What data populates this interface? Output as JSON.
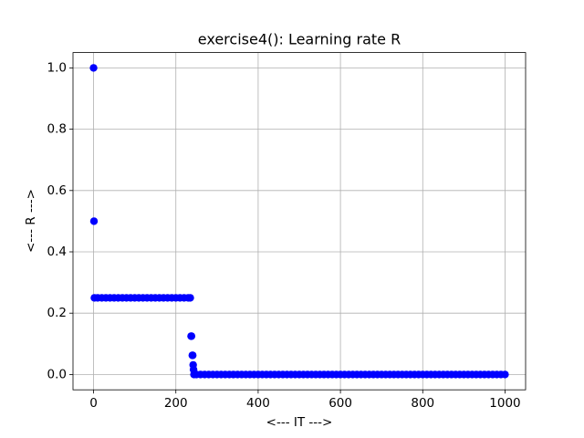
{
  "chart_data": {
    "type": "scatter",
    "title": "exercise4(): Learning rate R",
    "x_label": "<--- IT --->",
    "y_label": "<--- R --->",
    "color": "#0000ff",
    "grid": true,
    "xlim": [
      -50,
      1050
    ],
    "xticks": [
      0,
      200,
      400,
      600,
      800,
      1000
    ],
    "ylim": [
      -0.05,
      1.05
    ],
    "yticks": [
      {
        "value": 0,
        "label": "0.0"
      },
      0.2,
      0.4,
      0.6,
      0.8,
      {
        "value": 1,
        "label": "1.0"
      }
    ],
    "x": [
      0,
      1,
      2,
      10,
      20,
      30,
      40,
      50,
      60,
      70,
      80,
      90,
      100,
      110,
      120,
      130,
      140,
      150,
      160,
      170,
      180,
      190,
      200,
      210,
      220,
      230,
      235,
      237,
      238,
      240,
      241,
      242,
      243,
      244,
      250,
      260,
      270,
      280,
      290,
      300,
      310,
      320,
      330,
      340,
      350,
      360,
      370,
      380,
      390,
      400,
      410,
      420,
      430,
      440,
      450,
      460,
      470,
      480,
      490,
      500,
      510,
      520,
      530,
      540,
      550,
      560,
      570,
      580,
      590,
      600,
      610,
      620,
      630,
      640,
      650,
      660,
      670,
      680,
      690,
      700,
      710,
      720,
      730,
      740,
      750,
      760,
      770,
      780,
      790,
      800,
      810,
      820,
      830,
      840,
      850,
      860,
      870,
      880,
      890,
      900,
      910,
      920,
      930,
      940,
      950,
      960,
      970,
      980,
      990,
      1000
    ],
    "values": [
      1,
      0.5,
      0.25,
      0.25,
      0.25,
      0.25,
      0.25,
      0.25,
      0.25,
      0.25,
      0.25,
      0.25,
      0.25,
      0.25,
      0.25,
      0.25,
      0.25,
      0.25,
      0.25,
      0.25,
      0.25,
      0.25,
      0.25,
      0.25,
      0.25,
      0.25,
      0.25,
      0.125,
      0.125,
      0.0625,
      0.0625,
      0.03125,
      0.015625,
      0,
      0,
      0,
      0,
      0,
      0,
      0,
      0,
      0,
      0,
      0,
      0,
      0,
      0,
      0,
      0,
      0,
      0,
      0,
      0,
      0,
      0,
      0,
      0,
      0,
      0,
      0,
      0,
      0,
      0,
      0,
      0,
      0,
      0,
      0,
      0,
      0,
      0,
      0,
      0,
      0,
      0,
      0,
      0,
      0,
      0,
      0,
      0,
      0,
      0,
      0,
      0,
      0,
      0,
      0,
      0,
      0,
      0,
      0,
      0,
      0,
      0,
      0,
      0,
      0,
      0,
      0,
      0,
      0,
      0,
      0,
      0,
      0,
      0,
      0,
      0,
      0
    ]
  }
}
